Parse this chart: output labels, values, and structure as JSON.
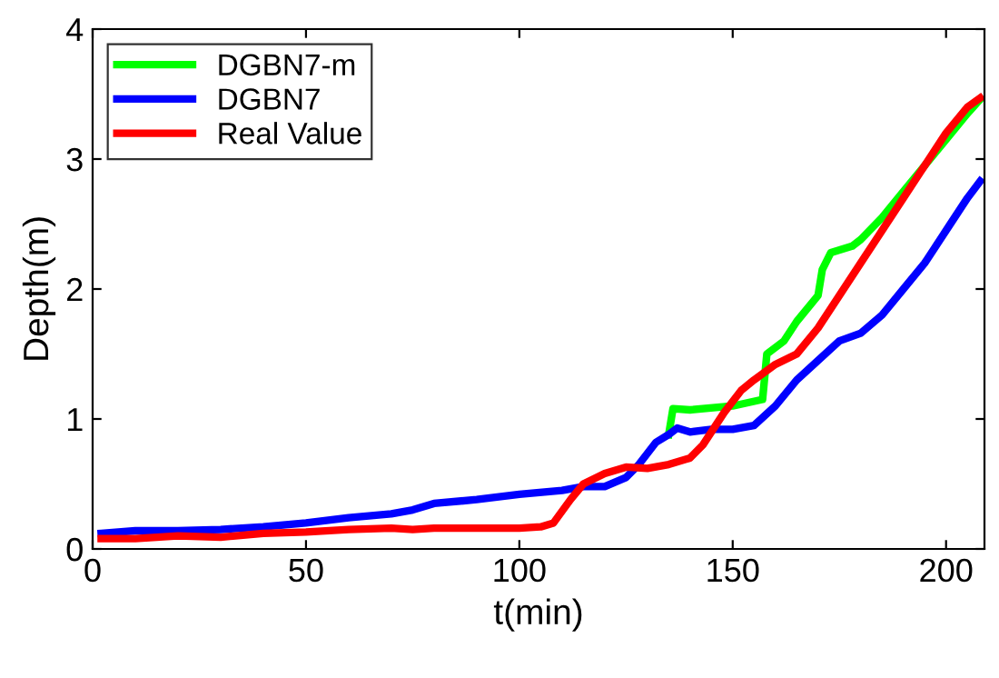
{
  "chart_data": {
    "type": "line",
    "xlabel": "t(min)",
    "ylabel": "Depth(m)",
    "xlim": [
      0,
      209
    ],
    "ylim": [
      0,
      4
    ],
    "xticks": [
      0,
      50,
      100,
      150,
      200
    ],
    "yticks": [
      0,
      1,
      2,
      3,
      4
    ],
    "grid": false,
    "legend": "top left",
    "series": [
      {
        "name": "DGBN7-m",
        "color": "#00ff00",
        "x": [
          135,
          136,
          140,
          150,
          157,
          158,
          162,
          165,
          170,
          171,
          173,
          178,
          180,
          185,
          190,
          195,
          200,
          205,
          208
        ],
        "values": [
          0.88,
          1.08,
          1.07,
          1.1,
          1.15,
          1.5,
          1.6,
          1.75,
          1.95,
          2.15,
          2.28,
          2.33,
          2.38,
          2.55,
          2.75,
          2.95,
          3.15,
          3.35,
          3.46
        ]
      },
      {
        "name": "DGBN7",
        "color": "#0000ff",
        "x": [
          2,
          10,
          20,
          30,
          40,
          50,
          60,
          70,
          75,
          80,
          90,
          100,
          110,
          115,
          120,
          125,
          128,
          132,
          135,
          137,
          140,
          145,
          150,
          155,
          160,
          165,
          170,
          175,
          180,
          185,
          190,
          195,
          200,
          205,
          208
        ],
        "values": [
          0.12,
          0.14,
          0.14,
          0.15,
          0.17,
          0.2,
          0.24,
          0.27,
          0.3,
          0.35,
          0.38,
          0.42,
          0.45,
          0.48,
          0.48,
          0.55,
          0.65,
          0.82,
          0.88,
          0.93,
          0.9,
          0.92,
          0.92,
          0.95,
          1.1,
          1.3,
          1.45,
          1.6,
          1.66,
          1.8,
          2.0,
          2.2,
          2.45,
          2.7,
          2.83
        ]
      },
      {
        "name": "Real Value",
        "color": "#ff0000",
        "x": [
          2,
          10,
          20,
          30,
          40,
          50,
          60,
          70,
          75,
          80,
          90,
          100,
          105,
          108,
          112,
          115,
          120,
          125,
          130,
          135,
          140,
          143,
          148,
          152,
          155,
          160,
          165,
          170,
          175,
          180,
          185,
          190,
          195,
          200,
          205,
          208
        ],
        "values": [
          0.08,
          0.08,
          0.1,
          0.09,
          0.12,
          0.13,
          0.15,
          0.16,
          0.15,
          0.16,
          0.16,
          0.16,
          0.17,
          0.2,
          0.38,
          0.5,
          0.58,
          0.63,
          0.62,
          0.65,
          0.7,
          0.8,
          1.05,
          1.22,
          1.3,
          1.42,
          1.5,
          1.7,
          1.95,
          2.2,
          2.45,
          2.7,
          2.95,
          3.2,
          3.4,
          3.47
        ]
      }
    ]
  }
}
